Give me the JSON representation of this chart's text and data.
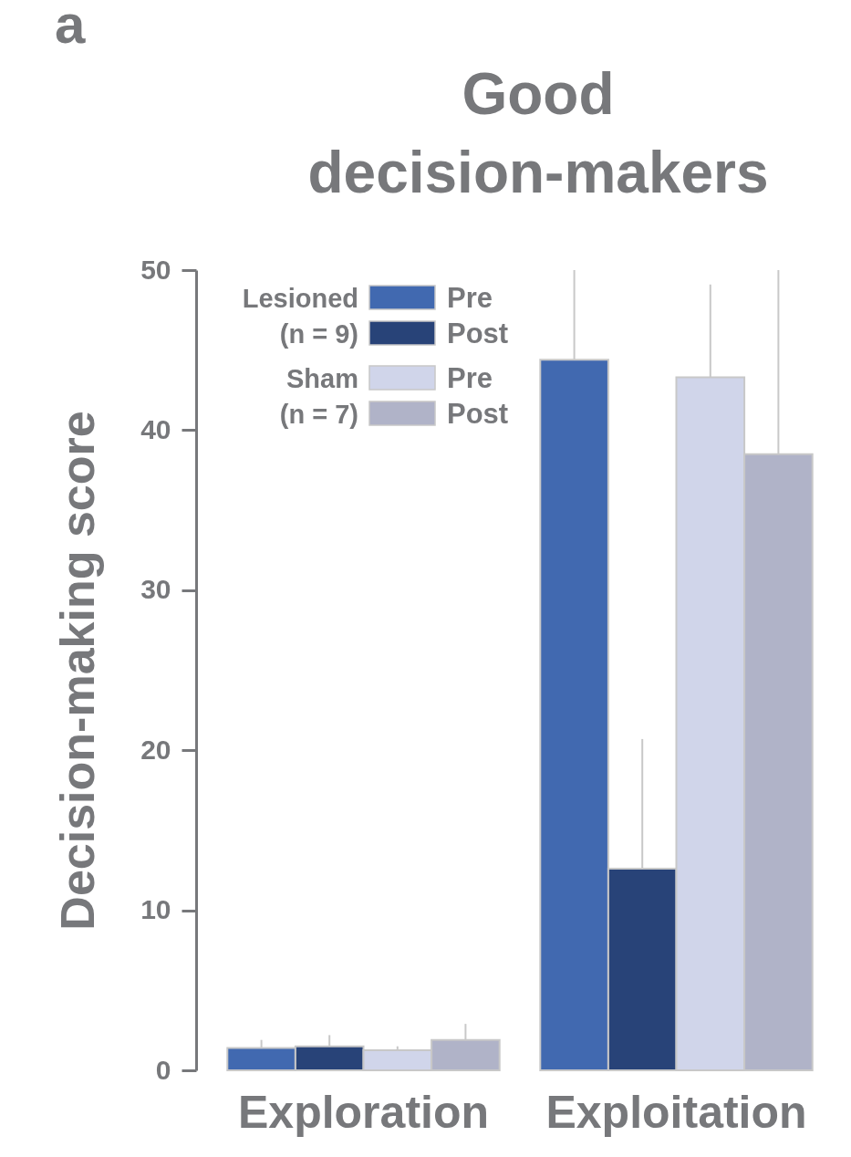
{
  "chart_data": {
    "type": "bar",
    "title": "Good decision-makers",
    "ylabel": "Decision-making score",
    "categories": [
      "Exploration",
      "Exploitation"
    ],
    "series": [
      {
        "name": "Pre",
        "color": "#4169b0",
        "values": [
          1.4,
          44.4
        ],
        "errors": [
          [
            1.4,
            1.9
          ],
          [
            44.4,
            50
          ]
        ]
      },
      {
        "name": "Post",
        "color": "#284378",
        "values": [
          1.5,
          12.6
        ],
        "errors": [
          [
            1.5,
            2.2
          ],
          [
            12.6,
            20.7
          ]
        ]
      },
      {
        "name": "Pre",
        "color": "#d0d5ea",
        "values": [
          1.25,
          43.3
        ],
        "errors": [
          [
            1.25,
            1.5
          ],
          [
            43.3,
            49.1
          ]
        ]
      },
      {
        "name": "Post",
        "color": "#b0b3c8",
        "values": [
          1.9,
          38.5
        ],
        "errors": [
          [
            1.9,
            2.9
          ],
          [
            38.5,
            50
          ]
        ]
      }
    ],
    "ylim": [
      0,
      50
    ],
    "yticks": [
      0,
      10,
      20,
      30,
      40,
      50
    ],
    "grid": false,
    "legend": "top left",
    "annotations": [
      "a",
      "Lesioned (n = 9)",
      "Sham (n = 7)"
    ]
  }
}
